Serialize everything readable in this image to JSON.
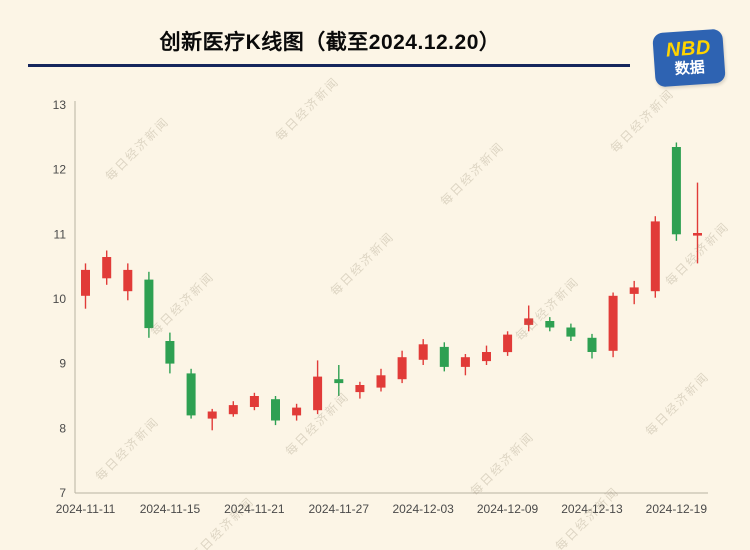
{
  "page": {
    "background": "#fcf5e6"
  },
  "header": {
    "title": "创新医疗K线图（截至2024.12.20）",
    "underline_color": "#16265c"
  },
  "logo": {
    "line1": "NBD",
    "line2": "数据",
    "bg_color": "#2e63b2",
    "nbd_color": "#ffd400",
    "text_color": "#ffffff"
  },
  "watermark": {
    "text": "每日经济新闻"
  },
  "chart_data": {
    "type": "candlestick",
    "title": "创新医疗K线图（截至2024.12.20）",
    "ylim": [
      7,
      13
    ],
    "yticks": [
      7,
      8,
      9,
      10,
      11,
      12,
      13
    ],
    "up_color": "#e13b38",
    "down_color": "#2ea052",
    "axis_color": "#b9b2a3",
    "xticks": [
      {
        "i": 0,
        "label": "2024-11-11"
      },
      {
        "i": 4,
        "label": "2024-11-15"
      },
      {
        "i": 8,
        "label": "2024-11-21"
      },
      {
        "i": 12,
        "label": "2024-11-27"
      },
      {
        "i": 16,
        "label": "2024-12-03"
      },
      {
        "i": 20,
        "label": "2024-12-09"
      },
      {
        "i": 24,
        "label": "2024-12-13"
      },
      {
        "i": 28,
        "label": "2024-12-19"
      }
    ],
    "candles": [
      {
        "date": "2024-11-11",
        "o": 10.05,
        "h": 10.55,
        "l": 9.85,
        "c": 10.45
      },
      {
        "date": "2024-11-12",
        "o": 10.32,
        "h": 10.75,
        "l": 10.22,
        "c": 10.65
      },
      {
        "date": "2024-11-13",
        "o": 10.12,
        "h": 10.55,
        "l": 9.98,
        "c": 10.45
      },
      {
        "date": "2024-11-14",
        "o": 10.3,
        "h": 10.42,
        "l": 9.4,
        "c": 9.55
      },
      {
        "date": "2024-11-15",
        "o": 9.35,
        "h": 9.48,
        "l": 8.85,
        "c": 9.0
      },
      {
        "date": "2024-11-18",
        "o": 8.85,
        "h": 8.92,
        "l": 8.15,
        "c": 8.2
      },
      {
        "date": "2024-11-19",
        "o": 8.15,
        "h": 8.3,
        "l": 7.97,
        "c": 8.26
      },
      {
        "date": "2024-11-20",
        "o": 8.22,
        "h": 8.42,
        "l": 8.18,
        "c": 8.36
      },
      {
        "date": "2024-11-21",
        "o": 8.33,
        "h": 8.55,
        "l": 8.28,
        "c": 8.5
      },
      {
        "date": "2024-11-22",
        "o": 8.45,
        "h": 8.5,
        "l": 8.05,
        "c": 8.12
      },
      {
        "date": "2024-11-25",
        "o": 8.2,
        "h": 8.38,
        "l": 8.12,
        "c": 8.32
      },
      {
        "date": "2024-11-26",
        "o": 8.28,
        "h": 9.05,
        "l": 8.22,
        "c": 8.8
      },
      {
        "date": "2024-11-27",
        "o": 8.76,
        "h": 8.98,
        "l": 8.5,
        "c": 8.7
      },
      {
        "date": "2024-11-28",
        "o": 8.56,
        "h": 8.72,
        "l": 8.46,
        "c": 8.67
      },
      {
        "date": "2024-11-29",
        "o": 8.63,
        "h": 8.92,
        "l": 8.57,
        "c": 8.82
      },
      {
        "date": "2024-12-02",
        "o": 8.76,
        "h": 9.2,
        "l": 8.7,
        "c": 9.1
      },
      {
        "date": "2024-12-03",
        "o": 9.06,
        "h": 9.38,
        "l": 8.98,
        "c": 9.3
      },
      {
        "date": "2024-12-04",
        "o": 9.26,
        "h": 9.33,
        "l": 8.88,
        "c": 8.95
      },
      {
        "date": "2024-12-05",
        "o": 8.95,
        "h": 9.15,
        "l": 8.82,
        "c": 9.1
      },
      {
        "date": "2024-12-06",
        "o": 9.04,
        "h": 9.28,
        "l": 8.98,
        "c": 9.18
      },
      {
        "date": "2024-12-09",
        "o": 9.18,
        "h": 9.5,
        "l": 9.12,
        "c": 9.45
      },
      {
        "date": "2024-12-10",
        "o": 9.6,
        "h": 9.9,
        "l": 9.5,
        "c": 9.7
      },
      {
        "date": "2024-12-11",
        "o": 9.66,
        "h": 9.72,
        "l": 9.5,
        "c": 9.56
      },
      {
        "date": "2024-12-12",
        "o": 9.56,
        "h": 9.62,
        "l": 9.35,
        "c": 9.42
      },
      {
        "date": "2024-12-13",
        "o": 9.4,
        "h": 9.46,
        "l": 9.08,
        "c": 9.18
      },
      {
        "date": "2024-12-16",
        "o": 9.2,
        "h": 10.1,
        "l": 9.1,
        "c": 10.05
      },
      {
        "date": "2024-12-17",
        "o": 10.08,
        "h": 10.28,
        "l": 9.92,
        "c": 10.18
      },
      {
        "date": "2024-12-18",
        "o": 10.12,
        "h": 11.28,
        "l": 10.02,
        "c": 11.2
      },
      {
        "date": "2024-12-19",
        "o": 12.35,
        "h": 12.42,
        "l": 10.9,
        "c": 11.0
      },
      {
        "date": "2024-12-20",
        "o": 10.98,
        "h": 11.8,
        "l": 10.55,
        "c": 11.02
      }
    ]
  }
}
